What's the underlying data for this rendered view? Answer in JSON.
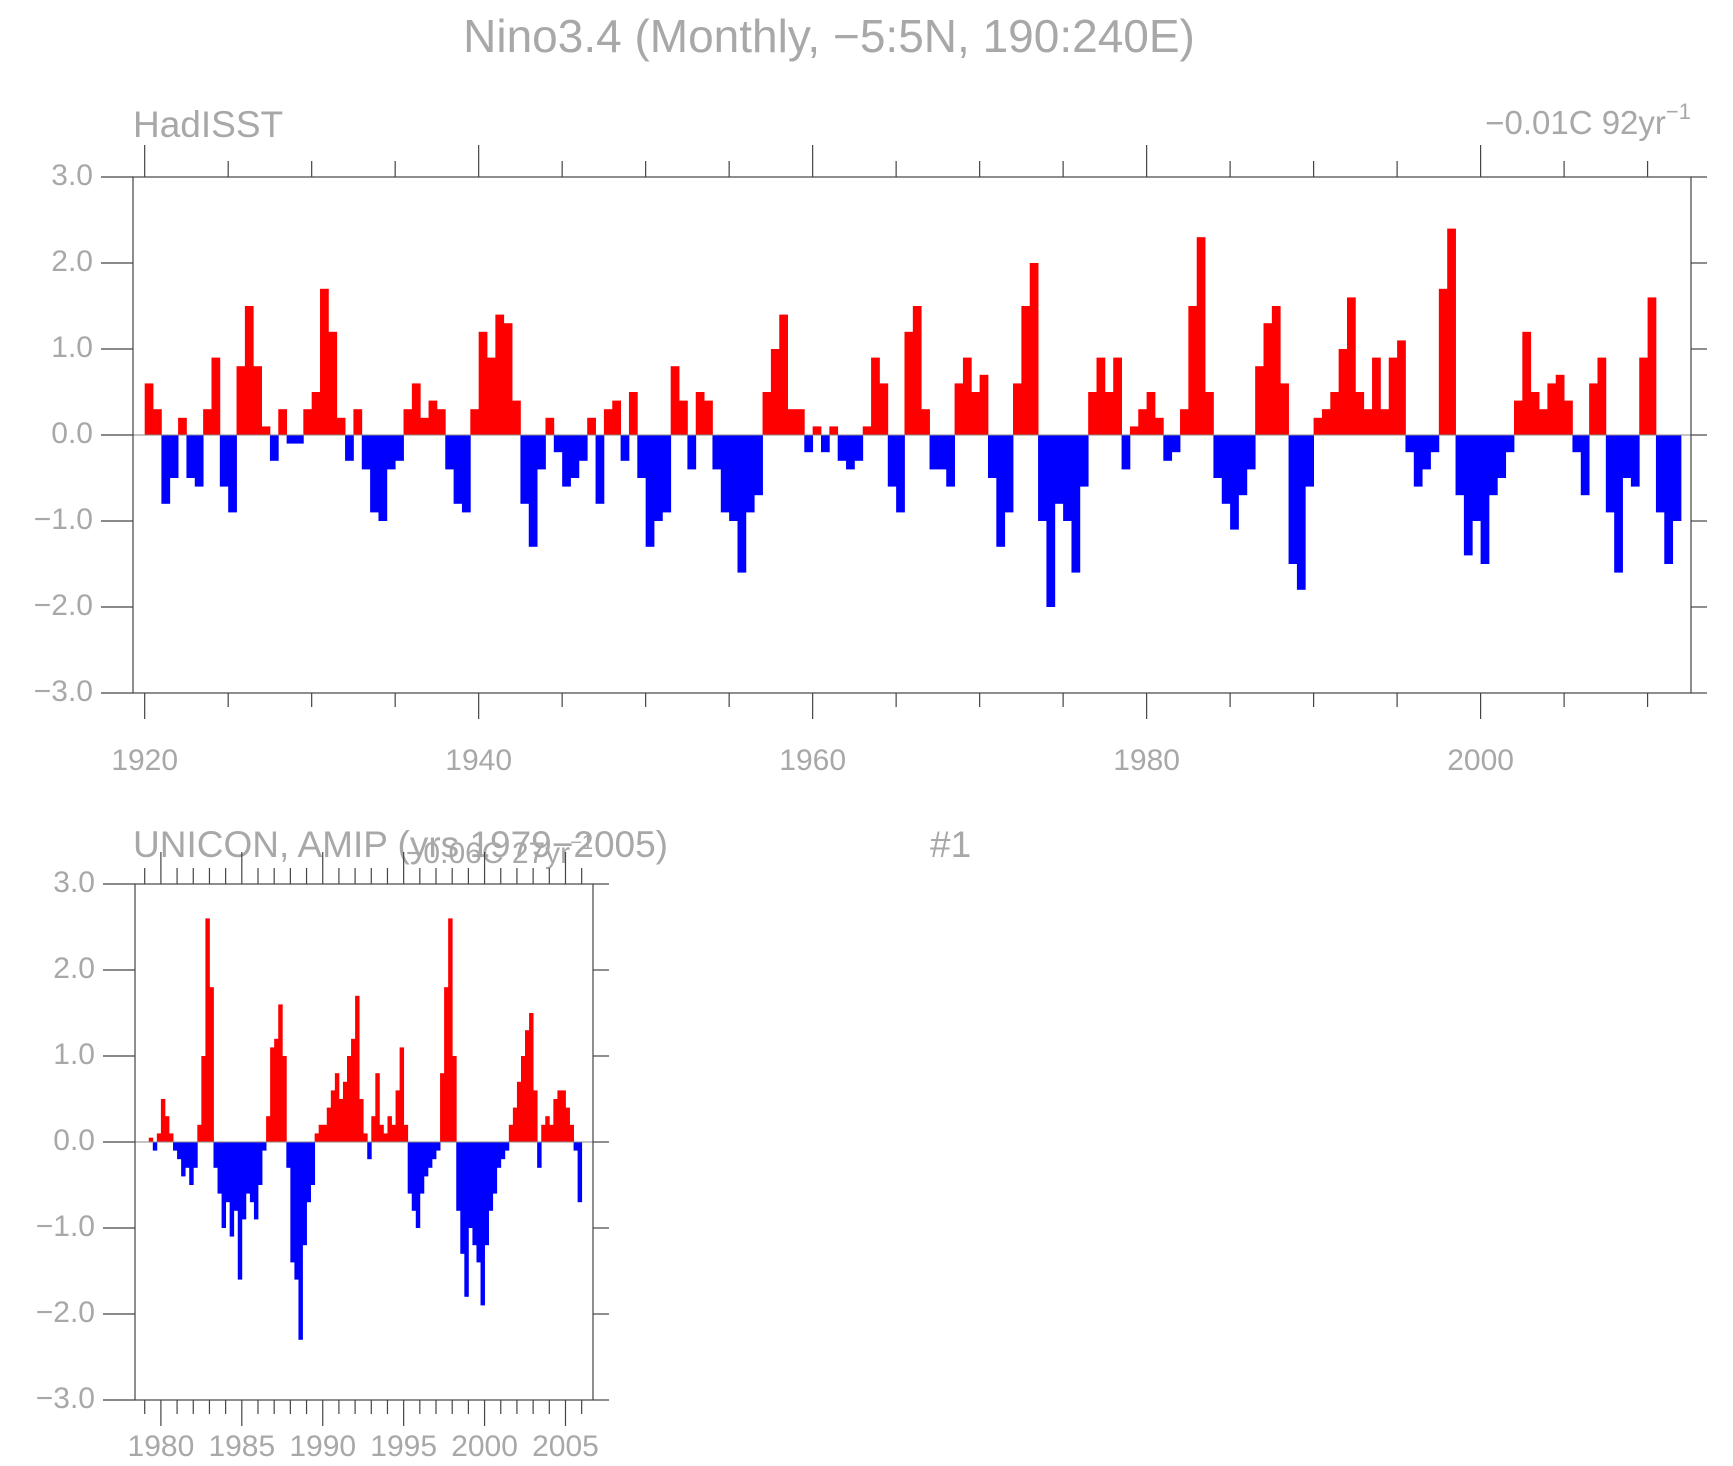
{
  "title": "Nino3.4 (Monthly, −5:5N, 190:240E)",
  "chart_data": [
    {
      "type": "bar",
      "title": "HadISST",
      "trend": "−0.01C 92yr",
      "trend_exponent": "−1",
      "colors": {
        "positive": "#ff0000",
        "negative": "#0000ff"
      },
      "xlim": [
        1919.3,
        2012.6
      ],
      "ylim": [
        -3,
        3
      ],
      "xticks": [
        1920,
        1940,
        1960,
        1980,
        2000
      ],
      "xminorticks": [
        1925,
        1930,
        1935,
        1945,
        1950,
        1955,
        1965,
        1970,
        1975,
        1985,
        1990,
        1995,
        2005,
        2010
      ],
      "yticks": [
        {
          "value": 3,
          "label": "3.0"
        },
        {
          "value": 2,
          "label": "2.0"
        },
        {
          "value": 1,
          "label": "1.0"
        },
        {
          "value": 0,
          "label": "0.0"
        },
        {
          "value": -1,
          "label": "−1.0"
        },
        {
          "value": -2,
          "label": "−2.0"
        },
        {
          "value": -3,
          "label": "−3.0"
        }
      ],
      "x": [
        1920,
        1920.5,
        1921,
        1921.5,
        1922,
        1922.5,
        1923,
        1923.5,
        1924,
        1924.5,
        1925,
        1925.5,
        1926,
        1926.5,
        1927,
        1927.5,
        1928,
        1928.5,
        1929,
        1929.5,
        1930,
        1930.5,
        1931,
        1931.5,
        1932,
        1932.5,
        1933,
        1933.5,
        1934,
        1934.5,
        1935,
        1935.5,
        1936,
        1936.5,
        1937,
        1937.5,
        1938,
        1938.5,
        1939,
        1939.5,
        1940,
        1940.5,
        1941,
        1941.5,
        1942,
        1942.5,
        1943,
        1943.5,
        1944,
        1944.5,
        1945,
        1945.5,
        1946,
        1946.5,
        1947,
        1947.5,
        1948,
        1948.5,
        1949,
        1949.5,
        1950,
        1950.5,
        1951,
        1951.5,
        1952,
        1952.5,
        1953,
        1953.5,
        1954,
        1954.5,
        1955,
        1955.5,
        1956,
        1956.5,
        1957,
        1957.5,
        1958,
        1958.5,
        1959,
        1959.5,
        1960,
        1960.5,
        1961,
        1961.5,
        1962,
        1962.5,
        1963,
        1963.5,
        1964,
        1964.5,
        1965,
        1965.5,
        1966,
        1966.5,
        1967,
        1967.5,
        1968,
        1968.5,
        1969,
        1969.5,
        1970,
        1970.5,
        1971,
        1971.5,
        1972,
        1972.5,
        1973,
        1973.5,
        1974,
        1974.5,
        1975,
        1975.5,
        1976,
        1976.5,
        1977,
        1977.5,
        1978,
        1978.5,
        1979,
        1979.5,
        1980,
        1980.5,
        1981,
        1981.5,
        1982,
        1982.5,
        1983,
        1983.5,
        1984,
        1984.5,
        1985,
        1985.5,
        1986,
        1986.5,
        1987,
        1987.5,
        1988,
        1988.5,
        1989,
        1989.5,
        1990,
        1990.5,
        1991,
        1991.5,
        1992,
        1992.5,
        1993,
        1993.5,
        1994,
        1994.5,
        1995,
        1995.5,
        1996,
        1996.5,
        1997,
        1997.5,
        1998,
        1998.5,
        1999,
        1999.5,
        2000,
        2000.5,
        2001,
        2001.5,
        2002,
        2002.5,
        2003,
        2003.5,
        2004,
        2004.5,
        2005,
        2005.5,
        2006,
        2006.5,
        2007,
        2007.5,
        2008,
        2008.5,
        2009,
        2009.5,
        2010,
        2010.5,
        2011,
        2011.5
      ],
      "values": [
        0.6,
        0.3,
        -0.8,
        -0.5,
        0.2,
        -0.5,
        -0.6,
        0.3,
        0.9,
        -0.6,
        -0.9,
        0.8,
        1.5,
        0.8,
        0.1,
        -0.3,
        0.3,
        -0.1,
        -0.1,
        0.3,
        0.5,
        1.7,
        1.2,
        0.2,
        -0.3,
        0.3,
        -0.4,
        -0.9,
        -1.0,
        -0.4,
        -0.3,
        0.3,
        0.6,
        0.2,
        0.4,
        0.3,
        -0.4,
        -0.8,
        -0.9,
        0.3,
        1.2,
        0.9,
        1.4,
        1.3,
        0.4,
        -0.8,
        -1.3,
        -0.4,
        0.2,
        -0.2,
        -0.6,
        -0.5,
        -0.3,
        0.2,
        -0.8,
        0.3,
        0.4,
        -0.3,
        0.5,
        -0.5,
        -1.3,
        -1.0,
        -0.9,
        0.8,
        0.4,
        -0.4,
        0.5,
        0.4,
        -0.4,
        -0.9,
        -1.0,
        -1.6,
        -0.9,
        -0.7,
        0.5,
        1.0,
        1.4,
        0.3,
        0.3,
        -0.2,
        0.1,
        -0.2,
        0.1,
        -0.3,
        -0.4,
        -0.3,
        0.1,
        0.9,
        0.6,
        -0.6,
        -0.9,
        1.2,
        1.5,
        0.3,
        -0.4,
        -0.4,
        -0.6,
        0.6,
        0.9,
        0.5,
        0.7,
        -0.5,
        -1.3,
        -0.9,
        0.6,
        1.5,
        2.0,
        -1.0,
        -2.0,
        -0.8,
        -1.0,
        -1.6,
        -0.6,
        0.5,
        0.9,
        0.5,
        0.9,
        -0.4,
        0.1,
        0.3,
        0.5,
        0.2,
        -0.3,
        -0.2,
        0.3,
        1.5,
        2.3,
        0.5,
        -0.5,
        -0.8,
        -1.1,
        -0.7,
        -0.4,
        0.8,
        1.3,
        1.5,
        0.6,
        -1.5,
        -1.8,
        -0.6,
        0.2,
        0.3,
        0.5,
        1.0,
        1.6,
        0.5,
        0.3,
        0.9,
        0.3,
        0.9,
        1.1,
        -0.2,
        -0.6,
        -0.4,
        -0.2,
        1.7,
        2.4,
        -0.7,
        -1.4,
        -1.0,
        -1.5,
        -0.7,
        -0.5,
        -0.2,
        0.4,
        1.2,
        0.5,
        0.3,
        0.6,
        0.7,
        0.4,
        -0.2,
        -0.7,
        0.6,
        0.9,
        -0.9,
        -1.6,
        -0.5,
        -0.6,
        0.9,
        1.6,
        -0.9,
        -1.5,
        -1.0
      ]
    },
    {
      "type": "bar",
      "title": "UNICON, AMIP (yrs 1979−2005)",
      "run": "#1",
      "trend": "−0.06C 27yr",
      "trend_exponent": "−1",
      "colors": {
        "positive": "#ff0000",
        "negative": "#0000ff"
      },
      "xlim": [
        1978.4,
        2006.7
      ],
      "ylim": [
        -3,
        3
      ],
      "xticks": [
        1980,
        1985,
        1990,
        1995,
        2000,
        2005
      ],
      "xminorticks": [
        1979,
        1981,
        1982,
        1983,
        1984,
        1986,
        1987,
        1988,
        1989,
        1991,
        1992,
        1993,
        1994,
        1996,
        1997,
        1998,
        1999,
        2001,
        2002,
        2003,
        2004,
        2006
      ],
      "yticks": [
        {
          "value": 3,
          "label": "3.0"
        },
        {
          "value": 2,
          "label": "2.0"
        },
        {
          "value": 1,
          "label": "1.0"
        },
        {
          "value": 0,
          "label": "0.0"
        },
        {
          "value": -1,
          "label": "−1.0"
        },
        {
          "value": -2,
          "label": "−2.0"
        },
        {
          "value": -3,
          "label": "−3.0"
        }
      ],
      "x": [
        1979,
        1979.25,
        1979.5,
        1979.75,
        1980,
        1980.25,
        1980.5,
        1980.75,
        1981,
        1981.25,
        1981.5,
        1981.75,
        1982,
        1982.25,
        1982.5,
        1982.75,
        1983,
        1983.25,
        1983.5,
        1983.75,
        1984,
        1984.25,
        1984.5,
        1984.75,
        1985,
        1985.25,
        1985.5,
        1985.75,
        1986,
        1986.25,
        1986.5,
        1986.75,
        1987,
        1987.25,
        1987.5,
        1987.75,
        1988,
        1988.25,
        1988.5,
        1988.75,
        1989,
        1989.25,
        1989.5,
        1989.75,
        1990,
        1990.25,
        1990.5,
        1990.75,
        1991,
        1991.25,
        1991.5,
        1991.75,
        1992,
        1992.25,
        1992.5,
        1992.75,
        1993,
        1993.25,
        1993.5,
        1993.75,
        1994,
        1994.25,
        1994.5,
        1994.75,
        1995,
        1995.25,
        1995.5,
        1995.75,
        1996,
        1996.25,
        1996.5,
        1996.75,
        1997,
        1997.25,
        1997.5,
        1997.75,
        1998,
        1998.25,
        1998.5,
        1998.75,
        1999,
        1999.25,
        1999.5,
        1999.75,
        2000,
        2000.25,
        2000.5,
        2000.75,
        2001,
        2001.25,
        2001.5,
        2001.75,
        2002,
        2002.25,
        2002.5,
        2002.75,
        2003,
        2003.25,
        2003.5,
        2003.75,
        2004,
        2004.25,
        2004.5,
        2004.75,
        2005,
        2005.25,
        2005.5,
        2005.75
      ],
      "values": [
        0.0,
        0.05,
        -0.1,
        0.1,
        0.5,
        0.3,
        0.1,
        -0.1,
        -0.2,
        -0.4,
        -0.3,
        -0.5,
        -0.3,
        0.2,
        1.0,
        2.6,
        1.8,
        -0.3,
        -0.6,
        -1.0,
        -0.7,
        -1.1,
        -0.8,
        -1.6,
        -0.9,
        -0.6,
        -0.7,
        -0.9,
        -0.5,
        -0.1,
        0.3,
        1.1,
        1.2,
        1.6,
        1.0,
        -0.3,
        -1.4,
        -1.6,
        -2.3,
        -1.2,
        -0.7,
        -0.5,
        0.1,
        0.2,
        0.2,
        0.4,
        0.6,
        0.8,
        0.5,
        0.7,
        1.0,
        1.2,
        1.7,
        0.5,
        0.1,
        -0.2,
        0.3,
        0.8,
        0.2,
        0.1,
        0.3,
        0.2,
        0.6,
        1.1,
        0.2,
        -0.6,
        -0.8,
        -1.0,
        -0.6,
        -0.4,
        -0.3,
        -0.2,
        -0.1,
        0.8,
        1.8,
        2.6,
        1.0,
        -0.8,
        -1.3,
        -1.8,
        -1.0,
        -1.2,
        -1.4,
        -1.9,
        -1.2,
        -0.8,
        -0.6,
        -0.3,
        -0.2,
        -0.1,
        0.2,
        0.4,
        0.7,
        1.0,
        1.3,
        1.5,
        0.6,
        -0.3,
        0.2,
        0.3,
        0.2,
        0.5,
        0.6,
        0.6,
        0.4,
        0.2,
        -0.1,
        -0.7
      ]
    }
  ]
}
